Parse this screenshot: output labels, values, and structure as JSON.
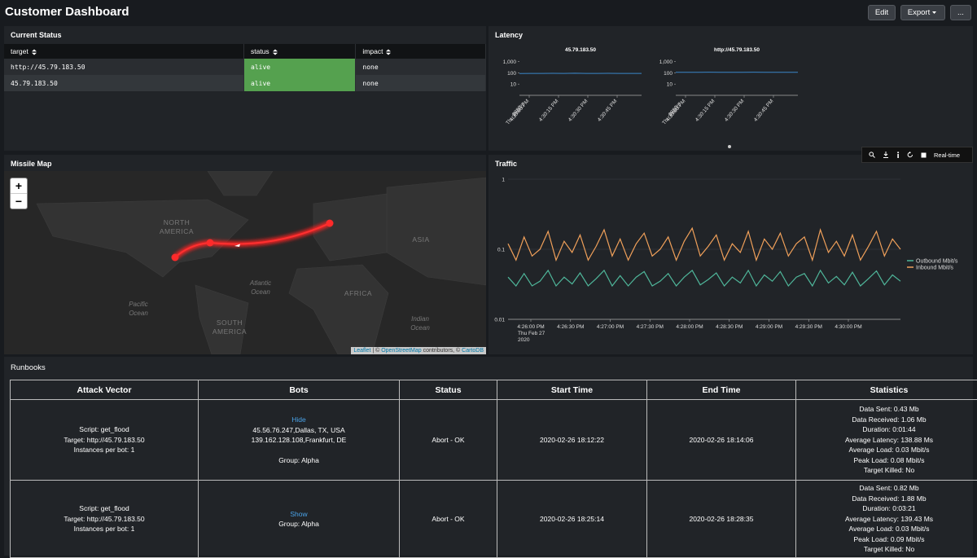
{
  "header": {
    "title": "Customer Dashboard",
    "buttons": [
      "Edit",
      "Export",
      "..."
    ]
  },
  "current_status": {
    "title": "Current Status",
    "columns": [
      "target",
      "status",
      "impact"
    ],
    "rows": [
      [
        "http://45.79.183.50",
        "alive",
        "none"
      ],
      [
        "45.79.183.50",
        "alive",
        "none"
      ]
    ]
  },
  "latency": {
    "title": "Latency",
    "charts": [
      {
        "type": "line",
        "title": "45.79.183.50",
        "log_scale": true,
        "ylim": [
          1,
          5000
        ],
        "yticks": [
          10,
          100,
          {
            "value": 1000,
            "label": "1,000"
          }
        ],
        "xticks": [
          "4:30:00 PM",
          "4:30:15 PM",
          "4:30:30 PM",
          "4:30:45 PM"
        ],
        "x_date_label": [
          "Thu Feb 27",
          "2020"
        ],
        "series": [
          {
            "color": "#3a86c8",
            "values": [
              88,
              90,
              89,
              91,
              90,
              92,
              89,
              90,
              91,
              90,
              89,
              90
            ]
          }
        ]
      },
      {
        "type": "line",
        "title": "http://45.79.183.50",
        "log_scale": true,
        "ylim": [
          1,
          5000
        ],
        "yticks": [
          10,
          100,
          {
            "value": 1000,
            "label": "1,000"
          }
        ],
        "xticks": [
          "4:30:00 PM",
          "4:30:15 PM",
          "4:30:30 PM",
          "4:30:45 PM"
        ],
        "x_date_label": [
          "Thu Feb 27",
          "2020"
        ],
        "series": [
          {
            "color": "#3a86c8",
            "values": [
              112,
              113,
              112,
              114,
              113,
              112,
              113,
              114,
              113,
              112,
              113,
              113
            ]
          }
        ]
      }
    ]
  },
  "missile_map": {
    "title": "Missile Map",
    "zoom": [
      "+",
      "−"
    ],
    "labels": [
      [
        "NORTH",
        "AMERICA"
      ],
      [
        "SOUTH",
        "AMERICA"
      ],
      [
        "AFRICA"
      ],
      [
        "ASIA"
      ],
      [
        "Atlantic",
        "Ocean"
      ],
      [
        "Pacific",
        "Ocean"
      ],
      [
        "Indian",
        "Ocean"
      ]
    ],
    "attribution": [
      "Leaflet",
      " | © ",
      "OpenStreetMap",
      " contributors, © ",
      "CartoDB"
    ]
  },
  "traffic": {
    "title": "Traffic",
    "toolbar": "Real-time",
    "chart": {
      "type": "line",
      "log_scale": true,
      "ylim": [
        0.01,
        1
      ],
      "yticks": [
        0.01,
        0.1,
        1
      ],
      "grid": true,
      "xticks": [
        "4:26:00 PM",
        "4:26:30 PM",
        "4:27:00 PM",
        "4:27:30 PM",
        "4:28:00 PM",
        "4:28:30 PM",
        "4:29:00 PM",
        "4:29:30 PM",
        "4:30:00 PM"
      ],
      "x_date_label": [
        "Thu Feb 27",
        "2020"
      ],
      "series": [
        {
          "name": "Outbound Mbit/s",
          "color": "#4fb69a",
          "values": [
            0.04,
            0.03,
            0.045,
            0.03,
            0.035,
            0.05,
            0.03,
            0.04,
            0.032,
            0.046,
            0.03,
            0.038,
            0.05,
            0.03,
            0.042,
            0.03,
            0.04,
            0.048,
            0.03,
            0.035,
            0.045,
            0.03,
            0.04,
            0.05,
            0.031,
            0.037,
            0.046,
            0.03,
            0.04,
            0.033,
            0.05,
            0.03,
            0.043,
            0.035,
            0.048,
            0.03,
            0.04,
            0.045,
            0.03,
            0.05,
            0.033,
            0.041,
            0.031,
            0.047,
            0.03,
            0.038,
            0.049,
            0.031,
            0.043,
            0.035
          ]
        },
        {
          "name": "Inbound Mbit/s",
          "color": "#f0a05a",
          "values": [
            0.12,
            0.07,
            0.15,
            0.08,
            0.1,
            0.18,
            0.07,
            0.13,
            0.09,
            0.16,
            0.07,
            0.11,
            0.19,
            0.08,
            0.14,
            0.07,
            0.12,
            0.17,
            0.08,
            0.1,
            0.15,
            0.07,
            0.13,
            0.2,
            0.08,
            0.11,
            0.16,
            0.07,
            0.12,
            0.09,
            0.18,
            0.07,
            0.14,
            0.1,
            0.17,
            0.08,
            0.12,
            0.15,
            0.07,
            0.19,
            0.09,
            0.13,
            0.08,
            0.16,
            0.07,
            0.11,
            0.18,
            0.08,
            0.14,
            0.1
          ]
        }
      ]
    }
  },
  "runbooks": {
    "title": "Runbooks",
    "columns": [
      "Attack Vector",
      "Bots",
      "Status",
      "Start Time",
      "End Time",
      "Statistics"
    ],
    "rows": [
      {
        "attack_vector": [
          "Script: get_flood",
          "Target: http://45.79.183.50",
          "Instances per bot: 1"
        ],
        "bots": {
          "toggle": "Hide",
          "lines": [
            "45.56.76.247,Dallas, TX, USA",
            "139.162.128.108,Frankfurt, DE"
          ],
          "group": "Group: Alpha"
        },
        "status": "Abort - OK",
        "start_time": "2020-02-26 18:12:22",
        "end_time": "2020-02-26 18:14:06",
        "statistics": [
          "Data Sent: 0.43 Mb",
          "Data Received: 1.06 Mb",
          "Duration: 0:01:44",
          "Average Latency: 138.88 Ms",
          "Average Load: 0.03 Mbit/s",
          "Peak Load: 0.08 Mbit/s",
          "Target Killed: No"
        ]
      },
      {
        "attack_vector": [
          "Script: get_flood",
          "Target: http://45.79.183.50",
          "Instances per bot: 1"
        ],
        "bots": {
          "toggle": "Show",
          "group": "Group: Alpha"
        },
        "status": "Abort - OK",
        "start_time": "2020-02-26 18:25:14",
        "end_time": "2020-02-26 18:28:35",
        "statistics": [
          "Data Sent: 0.82 Mb",
          "Data Received: 1.88 Mb",
          "Duration: 0:03:21",
          "Average Latency: 139.43 Ms",
          "Average Load: 0.03 Mbit/s",
          "Peak Load: 0.09 Mbit/s",
          "Target Killed: No"
        ]
      }
    ]
  }
}
